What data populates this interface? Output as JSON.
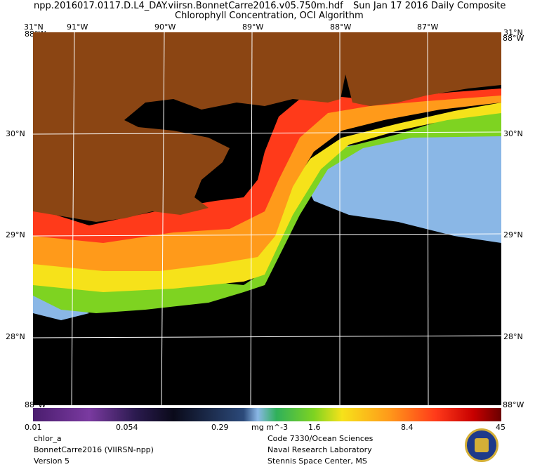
{
  "header": {
    "line1_left": "npp.2016017.0117.D.L4_DAY.viirsn.BonnetCarre2016.v05.750m.hdf",
    "line1_right": "Sun Jan 17 2016 Daily Composite",
    "line2": "Chlorophyll Concentration, OCI Algorithm"
  },
  "axes": {
    "top_lon": [
      "31°N",
      "91°W",
      "90°W",
      "89°W",
      "88°W",
      "87°W",
      "31°N"
    ],
    "top_lon_sub": [
      "88°W",
      "88°W"
    ],
    "lat_left": [
      "30°N",
      "29°N",
      "28°N"
    ],
    "lat_right": [
      "30°N",
      "29°N",
      "28°N"
    ],
    "bottom_corner": [
      "88°W",
      "88°W"
    ]
  },
  "colorbar": {
    "ticks": [
      "0.01",
      "0.054",
      "0.29",
      "1.6",
      "8.4",
      "45"
    ],
    "units": "mg m^-3"
  },
  "footer": {
    "left": [
      "chlor_a",
      "BonnetCarre2016 (VIIRSN-npp)",
      "Version 5"
    ],
    "right": [
      "Code 7330/Ocean Sciences",
      "Naval Research Laboratory",
      "Stennis Space Center, MS"
    ]
  },
  "colors": {
    "land": "#8b4513",
    "no_data": "#000000",
    "low_chl": "#8ab7e6",
    "high_chl": "#ff3a1a"
  },
  "emblem": "nrl-seal-icon"
}
